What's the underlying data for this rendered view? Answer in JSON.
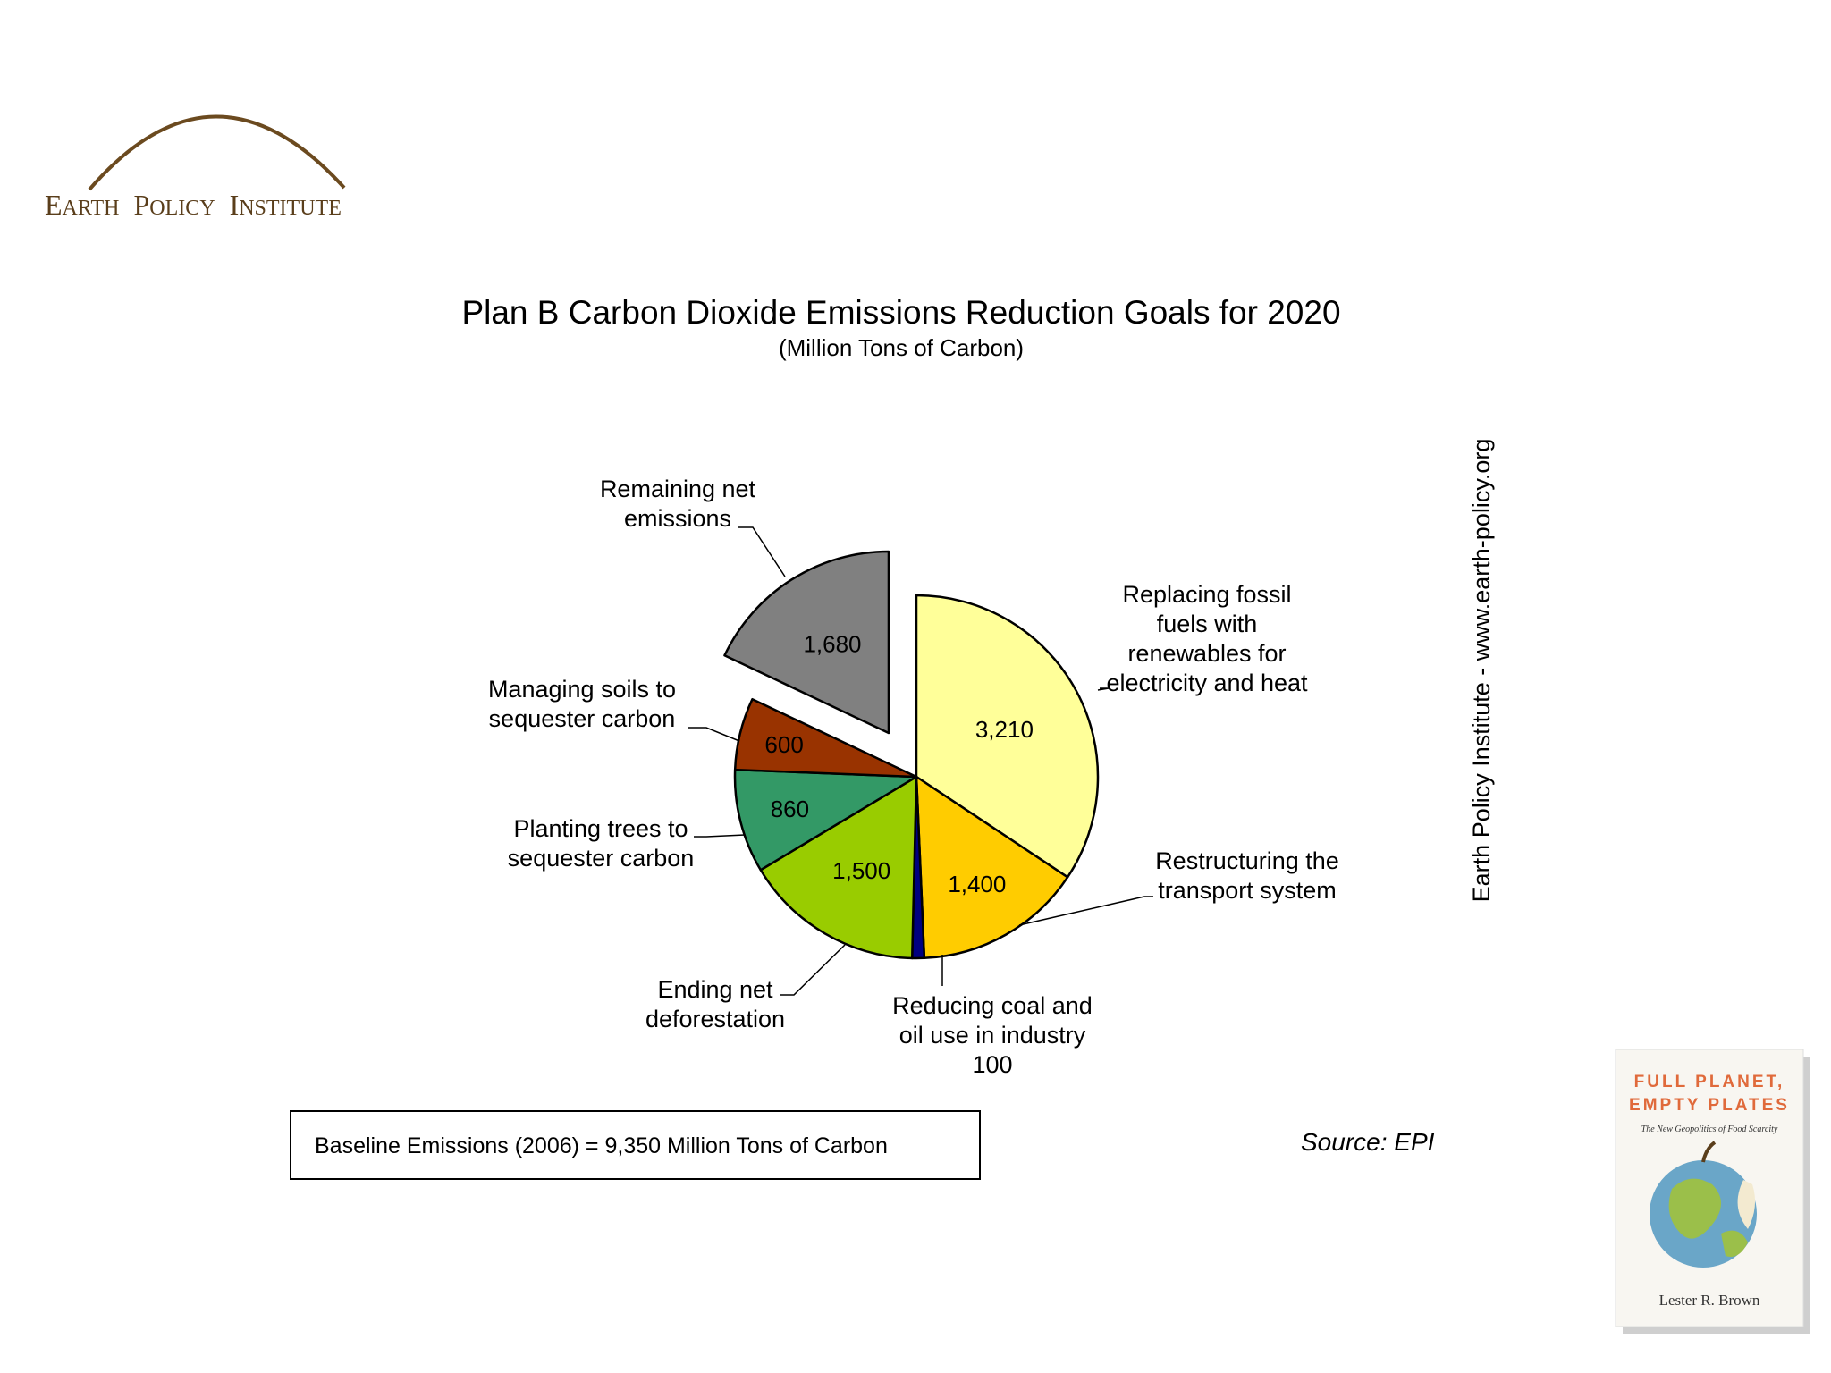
{
  "logo": {
    "text_big1": "E",
    "text_small1": "ARTH",
    "text_big2": "P",
    "text_small2": "OLICY",
    "text_big3": "I",
    "text_small3": "NSTITUTE",
    "color": "#6b4a1f"
  },
  "side_credit": "Earth Policy Institute - www.earth-policy.org",
  "source_note": "Source: EPI",
  "baseline_box": "Baseline Emissions (2006) = 9,350 Million Tons of Carbon",
  "book_cover": {
    "title_line1": "FULL PLANET,",
    "title_line2": "EMPTY PLATES",
    "subtitle": "The New Geopolitics of Food Scarcity",
    "author": "Lester R. Brown"
  },
  "chart_data": {
    "type": "pie",
    "title": "Plan B Carbon Dioxide Emissions Reduction Goals for 2020",
    "subtitle": "(Million Tons of Carbon)",
    "total": 9350,
    "slices": [
      {
        "label": "Replacing fossil fuels with renewables for electricity and heat",
        "label_lines": [
          "Replacing fossil",
          "fuels with",
          "renewables for",
          "electricity and heat"
        ],
        "value": 3210,
        "value_label": "3,210",
        "color": "#ffff99",
        "exploded": false
      },
      {
        "label": "Restructuring the transport system",
        "label_lines": [
          "Restructuring the",
          "transport system"
        ],
        "value": 1400,
        "value_label": "1,400",
        "color": "#ffcc00",
        "exploded": false
      },
      {
        "label": "Reducing coal and oil use in industry",
        "label_lines": [
          "Reducing coal and",
          "oil use in industry",
          "100"
        ],
        "value": 100,
        "value_label": "100",
        "color": "#000080",
        "exploded": false
      },
      {
        "label": "Ending net deforestation",
        "label_lines": [
          "Ending net",
          "deforestation"
        ],
        "value": 1500,
        "value_label": "1,500",
        "color": "#99cc00",
        "exploded": false
      },
      {
        "label": "Planting trees to sequester carbon",
        "label_lines": [
          "Planting trees to",
          "sequester carbon"
        ],
        "value": 860,
        "value_label": "860",
        "color": "#339966",
        "exploded": false
      },
      {
        "label": "Managing soils to sequester carbon",
        "label_lines": [
          "Managing soils to",
          "sequester carbon"
        ],
        "value": 600,
        "value_label": "600",
        "color": "#993300",
        "exploded": false
      },
      {
        "label": "Remaining net emissions",
        "label_lines": [
          "Remaining net",
          "emissions"
        ],
        "value": 1680,
        "value_label": "1,680",
        "color": "#808080",
        "exploded": true
      }
    ]
  }
}
